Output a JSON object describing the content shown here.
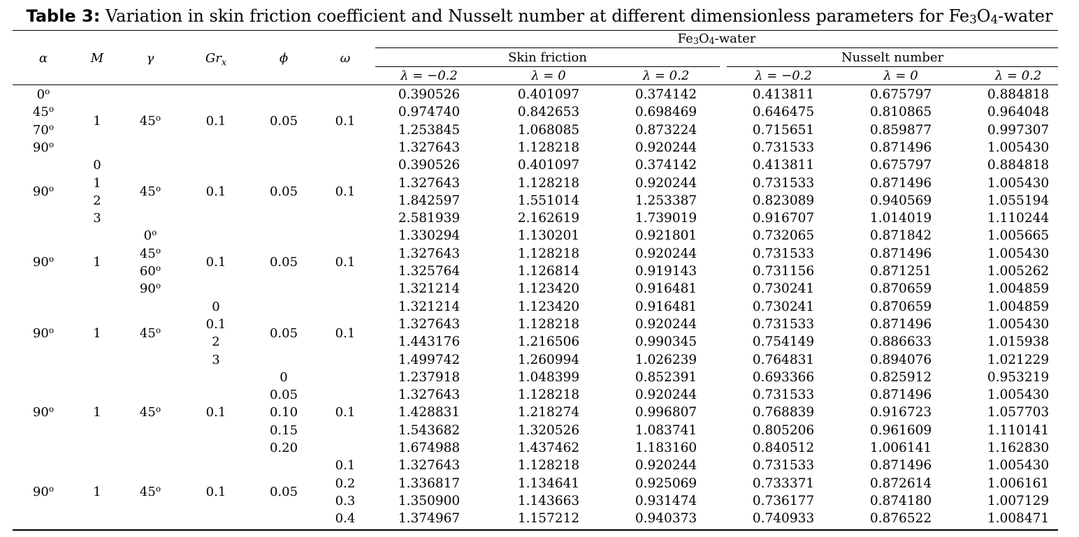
{
  "caption": {
    "label": "Table 3:",
    "text_before": "Variation in skin friction coefficient and Nusselt number at different dimensionless parameters for Fe",
    "sub1": "3",
    "text_mid": "O",
    "sub2": "4",
    "text_after": "-water"
  },
  "header": {
    "columns": [
      "α",
      "M",
      "γ",
      "Gr",
      "ϕ",
      "ω"
    ],
    "gr_subscript": "x",
    "group_title_pre": "Fe",
    "group_sub1": "3",
    "group_mid": "O",
    "group_sub2": "4",
    "group_title_post": "-water",
    "skin_friction": "Skin friction",
    "nusselt": "Nusselt number",
    "lambdas": [
      "λ = −0.2",
      "λ = 0",
      "λ = 0.2",
      "λ = −0.2",
      "λ = 0",
      "λ = 0.2"
    ]
  },
  "row_labels": [
    {
      "alpha": [
        "0o",
        "45o",
        "70o",
        "90o"
      ],
      "M": [
        "1"
      ],
      "gamma": [
        "45o"
      ],
      "gr": [
        "0.1"
      ],
      "phi": [
        "0.05"
      ],
      "omega": [
        "0.1"
      ]
    },
    {
      "alpha": [
        "90o"
      ],
      "M": [
        "0",
        "1",
        "2",
        "3"
      ],
      "gamma": [
        "45o"
      ],
      "gr": [
        "0.1"
      ],
      "phi": [
        "0.05"
      ],
      "omega": [
        "0.1"
      ]
    },
    {
      "alpha": [
        "90o"
      ],
      "M": [
        "1"
      ],
      "gamma": [
        "0o",
        "45o",
        "60o",
        "90o"
      ],
      "gr": [
        "0.1"
      ],
      "phi": [
        "0.05"
      ],
      "omega": [
        "0.1"
      ]
    },
    {
      "alpha": [
        "90o"
      ],
      "M": [
        "1"
      ],
      "gamma": [
        "45o"
      ],
      "gr": [
        "0",
        "0.1",
        "2",
        "3"
      ],
      "phi": [
        "0.05"
      ],
      "omega": [
        "0.1"
      ]
    },
    {
      "alpha": [
        "90o"
      ],
      "M": [
        "1"
      ],
      "gamma": [
        "45o"
      ],
      "gr": [
        "0.1"
      ],
      "phi": [
        "0",
        "0.05",
        "0.10",
        "0.15",
        "0.20"
      ],
      "omega": [
        "0.1"
      ]
    },
    {
      "alpha": [
        "90o"
      ],
      "M": [
        "1"
      ],
      "gamma": [
        "45o"
      ],
      "gr": [
        "0.1"
      ],
      "phi": [
        "0.05"
      ],
      "omega": [
        "0.1",
        "0.2",
        "0.3",
        "0.4"
      ]
    }
  ],
  "rows": [
    [
      "0.390526",
      "0.401097",
      "0.374142",
      "0.413811",
      "0.675797",
      "0.884818"
    ],
    [
      "0.974740",
      "0.842653",
      "0.698469",
      "0.646475",
      "0.810865",
      "0.964048"
    ],
    [
      "1.253845",
      "1.068085",
      "0.873224",
      "0.715651",
      "0.859877",
      "0.997307"
    ],
    [
      "1.327643",
      "1.128218",
      "0.920244",
      "0.731533",
      "0.871496",
      "1.005430"
    ],
    [
      "0.390526",
      "0.401097",
      "0.374142",
      "0.413811",
      "0.675797",
      "0.884818"
    ],
    [
      "1.327643",
      "1.128218",
      "0.920244",
      "0.731533",
      "0.871496",
      "1.005430"
    ],
    [
      "1.842597",
      "1.551014",
      "1.253387",
      "0.823089",
      "0.940569",
      "1.055194"
    ],
    [
      "2.581939",
      "2.162619",
      "1.739019",
      "0.916707",
      "1.014019",
      "1.110244"
    ],
    [
      "1.330294",
      "1.130201",
      "0.921801",
      "0.732065",
      "0.871842",
      "1.005665"
    ],
    [
      "1.327643",
      "1.128218",
      "0.920244",
      "0.731533",
      "0.871496",
      "1.005430"
    ],
    [
      "1.325764",
      "1.126814",
      "0.919143",
      "0.731156",
      "0.871251",
      "1.005262"
    ],
    [
      "1.321214",
      "1.123420",
      "0.916481",
      "0.730241",
      "0.870659",
      "1.004859"
    ],
    [
      "1.321214",
      "1.123420",
      "0.916481",
      "0.730241",
      "0.870659",
      "1.004859"
    ],
    [
      "1.327643",
      "1.128218",
      "0.920244",
      "0.731533",
      "0.871496",
      "1.005430"
    ],
    [
      "1.443176",
      "1.216506",
      "0.990345",
      "0.754149",
      "0.886633",
      "1.015938"
    ],
    [
      "1.499742",
      "1.260994",
      "1.026239",
      "0.764831",
      "0.894076",
      "1.021229"
    ],
    [
      "1.237918",
      "1.048399",
      "0.852391",
      "0.693366",
      "0.825912",
      "0.953219"
    ],
    [
      "1.327643",
      "1.128218",
      "0.920244",
      "0.731533",
      "0.871496",
      "1.005430"
    ],
    [
      "1.428831",
      "1.218274",
      "0.996807",
      "0.768839",
      "0.916723",
      "1.057703"
    ],
    [
      "1.543682",
      "1.320526",
      "1.083741",
      "0.805206",
      "0.961609",
      "1.110141"
    ],
    [
      "1.674988",
      "1.437462",
      "1.183160",
      "0.840512",
      "1.006141",
      "1.162830"
    ],
    [
      "1.327643",
      "1.128218",
      "0.920244",
      "0.731533",
      "0.871496",
      "1.005430"
    ],
    [
      "1.336817",
      "1.134641",
      "0.925069",
      "0.733371",
      "0.872614",
      "1.006161"
    ],
    [
      "1.350900",
      "1.143663",
      "0.931474",
      "0.736177",
      "0.874180",
      "1.007129"
    ],
    [
      "1.374967",
      "1.157212",
      "0.940373",
      "0.740933",
      "0.876522",
      "1.008471"
    ]
  ]
}
